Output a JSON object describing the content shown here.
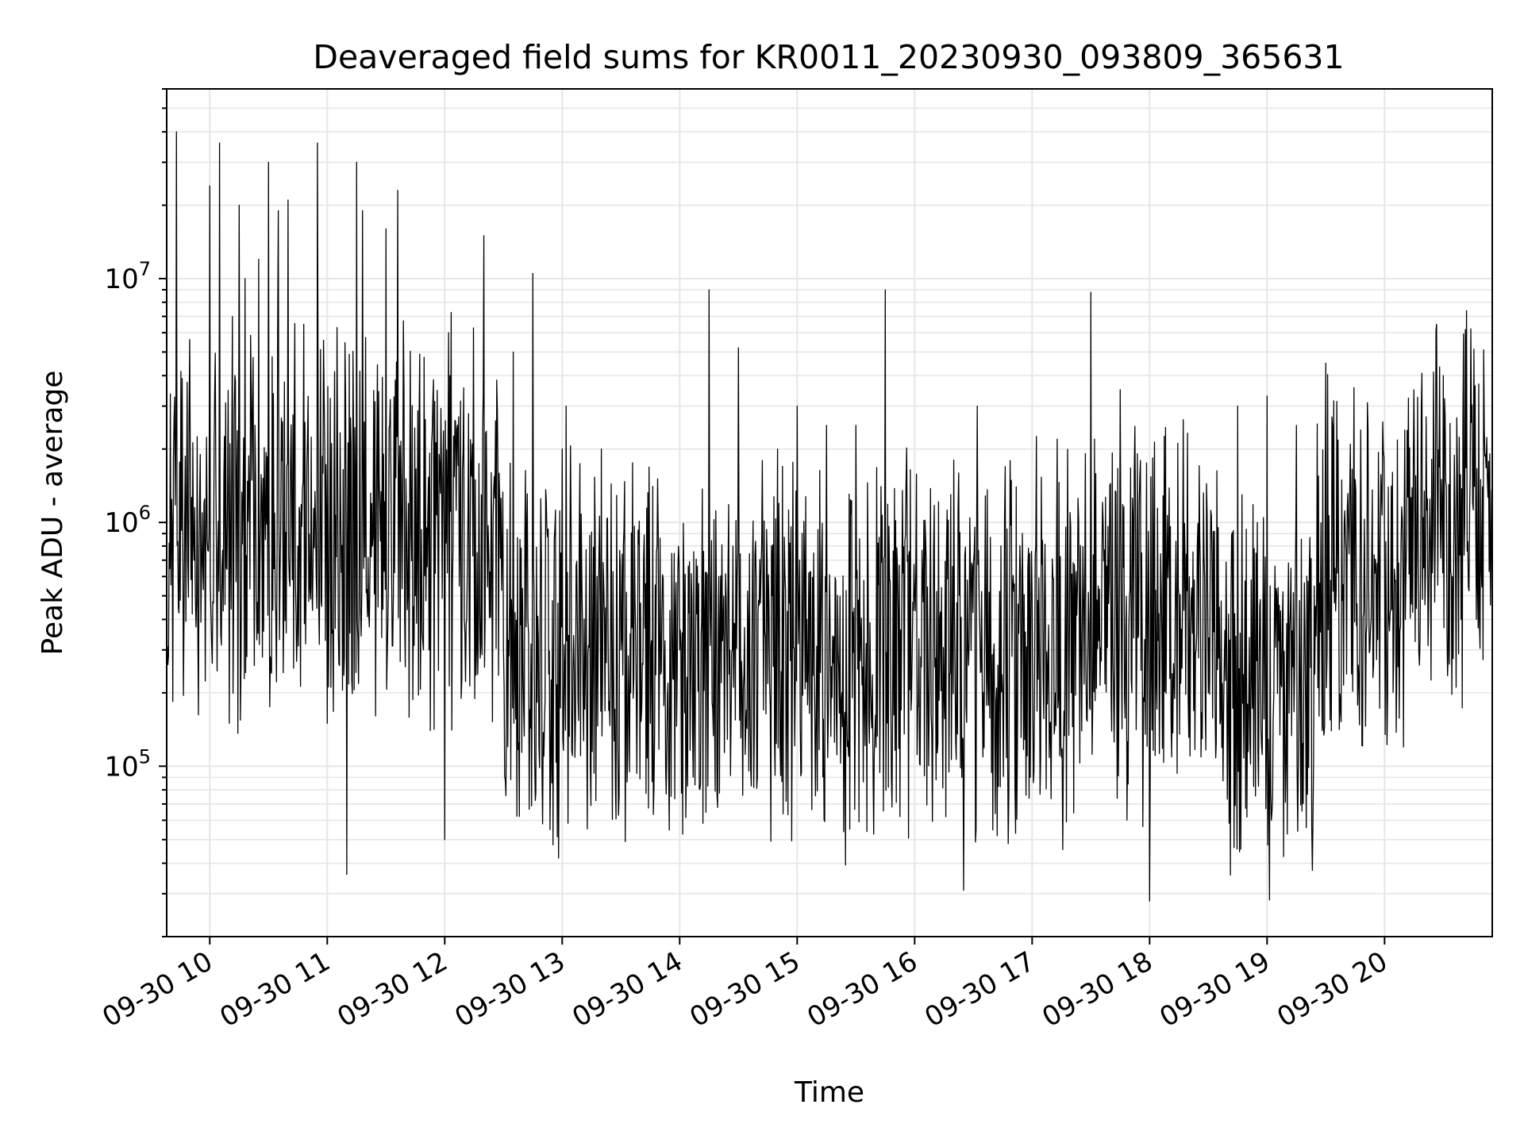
{
  "chart_data": {
    "type": "line",
    "title": "Deaveraged field sums for KR0011_20230930_093809_365631",
    "xlabel": "Time",
    "ylabel": "Peak ADU - average",
    "y_scale": "log",
    "ylim": [
      20000,
      60000000
    ],
    "xlim": [
      "2023-09-30 09:38",
      "2023-09-30 20:55"
    ],
    "x_ticks": [
      "2023-09-30 10:00",
      "2023-09-30 11:00",
      "2023-09-30 12:00",
      "2023-09-30 13:00",
      "2023-09-30 14:00",
      "2023-09-30 15:00",
      "2023-09-30 16:00",
      "2023-09-30 17:00",
      "2023-09-30 18:00",
      "2023-09-30 19:00",
      "2023-09-30 20:00"
    ],
    "x_tick_labels": [
      "09-30 10",
      "09-30 11",
      "09-30 12",
      "09-30 13",
      "09-30 14",
      "09-30 15",
      "09-30 16",
      "09-30 17",
      "09-30 18",
      "09-30 19",
      "09-30 20"
    ],
    "y_tick_labels": [
      {
        "base": "10",
        "exp": "5",
        "value": 100000
      },
      {
        "base": "10",
        "exp": "6",
        "value": 1000000
      },
      {
        "base": "10",
        "exp": "7",
        "value": 10000000
      }
    ],
    "grid": true,
    "legend": "none",
    "colors": {
      "line": "#000000",
      "grid": "#e6e6e6",
      "axes": "#000000"
    },
    "series": [
      {
        "x": [
          "09:38",
          "09:43",
          "09:52",
          "09:58",
          "10:00",
          "10:05",
          "10:10",
          "10:15",
          "10:18",
          "10:25",
          "10:30",
          "10:35",
          "10:40",
          "10:45",
          "10:48",
          "10:55",
          "11:00",
          "11:05",
          "11:10",
          "11:15",
          "11:18",
          "11:25",
          "11:30",
          "11:36",
          "11:45",
          "11:52",
          "12:00",
          "12:02",
          "12:10",
          "12:20",
          "12:30",
          "12:35",
          "12:45",
          "13:00",
          "13:02",
          "13:10",
          "13:20",
          "13:30",
          "13:35",
          "13:45",
          "14:00",
          "14:15",
          "14:20",
          "14:30",
          "14:35",
          "14:50",
          "15:00",
          "15:05",
          "15:15",
          "15:30",
          "15:45",
          "16:00",
          "16:15",
          "16:25",
          "16:32",
          "16:45",
          "17:00",
          "17:20",
          "17:30",
          "17:45",
          "18:00",
          "18:15",
          "18:30",
          "18:45",
          "19:00",
          "19:05",
          "19:15",
          "19:30",
          "19:45",
          "20:00",
          "20:15",
          "20:30",
          "20:45",
          "20:55"
        ],
        "y": [
          250000,
          40000000,
          700000,
          800000,
          24000000,
          36000000,
          150000,
          20000000,
          10000000,
          12000000,
          30000000,
          19000000,
          21000000,
          800000,
          6500000,
          36000000,
          150000,
          6300000,
          36000,
          30000000,
          19000000,
          800000,
          16000000,
          23000000,
          500000,
          300000,
          50000,
          6000000,
          400000,
          15000000,
          300000,
          5000000,
          10500000,
          2000000,
          3000000,
          600000,
          2000000,
          300000,
          200000,
          150000,
          300000,
          9000000,
          600000,
          5200000,
          400000,
          2000000,
          3000000,
          400000,
          2500000,
          2500000,
          9000000,
          500000,
          200000,
          31000,
          3000000,
          200000,
          500000,
          200000,
          8800000,
          3500000,
          28000,
          500000,
          200000,
          3000000,
          3300000,
          500000,
          2500000,
          4500000,
          1500000,
          800000,
          3500000,
          4000000,
          1200000,
          1400000
        ]
      }
    ]
  }
}
